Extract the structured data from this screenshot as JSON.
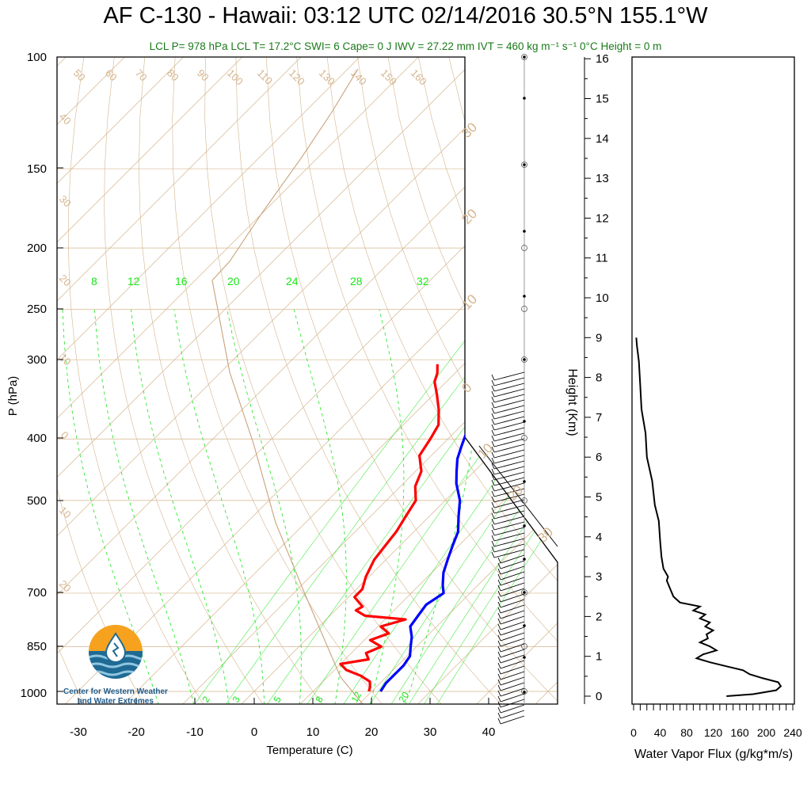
{
  "title": "AF C-130 - Hawaii: 03:12 UTC 02/14/2016  30.5°N 155.1°W",
  "subtitle": "LCL P= 978 hPa  LCL T= 17.2°C  SWI= 6  Cape= 0 J  IWV = 27.22 mm  IVT = 460 kg m⁻¹ s⁻¹  0°C Height = 0 m",
  "logo": {
    "line1": "Center for Western Weather",
    "line2": "and Water Extremes"
  },
  "colors": {
    "temperature": "#ff0000",
    "dewpoint": "#0000ff",
    "isotherm": "#d4b48c",
    "mixing_ratio": "#19e619",
    "flux": "#000000"
  },
  "chart_data": [
    {
      "type": "line",
      "subtype": "skew-t",
      "title": "",
      "xlabel": "Temperature (C)",
      "ylabel": "P (hPa)",
      "pressure_ticks": [
        100,
        150,
        200,
        250,
        300,
        400,
        500,
        700,
        850,
        1000
      ],
      "temperature_ticks": [
        -30,
        -20,
        -10,
        0,
        10,
        20,
        30,
        40
      ],
      "xlim": [
        -34,
        52
      ],
      "ylim": [
        1050,
        100
      ],
      "isotherm_labels": [
        "50",
        "60",
        "70",
        "80",
        "90",
        "100",
        "110",
        "120",
        "130",
        "140",
        "150",
        "160",
        "40",
        "30",
        "20",
        "10",
        "0",
        "10",
        "20",
        "30",
        "20",
        "10",
        "0",
        "10",
        "20",
        "30"
      ],
      "mixing_ratio_labels_top": [
        "8",
        "12",
        "16",
        "20",
        "24",
        "28",
        "32"
      ],
      "mixing_ratio_labels_bottom": [
        "2",
        "3",
        "5",
        "8",
        "12",
        "20"
      ],
      "series": [
        {
          "key": "temperature",
          "values": [
            {
              "p": 1000,
              "t": 19.5
            },
            {
              "p": 985,
              "t": 19.0
            },
            {
              "p": 965,
              "t": 18.0
            },
            {
              "p": 945,
              "t": 15.5
            },
            {
              "p": 925,
              "t": 12.0
            },
            {
              "p": 905,
              "t": 10.0
            },
            {
              "p": 890,
              "t": 14.0
            },
            {
              "p": 870,
              "t": 12.5
            },
            {
              "p": 850,
              "t": 14.0
            },
            {
              "p": 830,
              "t": 11.0
            },
            {
              "p": 810,
              "t": 13.0
            },
            {
              "p": 790,
              "t": 10.5
            },
            {
              "p": 770,
              "t": 13.5
            },
            {
              "p": 760,
              "t": 6.0
            },
            {
              "p": 745,
              "t": 3.5
            },
            {
              "p": 735,
              "t": 4.0
            },
            {
              "p": 710,
              "t": 1.0
            },
            {
              "p": 690,
              "t": 1.0
            },
            {
              "p": 660,
              "t": -0.5
            },
            {
              "p": 620,
              "t": -2.0
            },
            {
              "p": 590,
              "t": -2.5
            },
            {
              "p": 560,
              "t": -3.0
            },
            {
              "p": 530,
              "t": -4.0
            },
            {
              "p": 500,
              "t": -5.0
            },
            {
              "p": 475,
              "t": -7.5
            },
            {
              "p": 450,
              "t": -9.0
            },
            {
              "p": 425,
              "t": -12.0
            },
            {
              "p": 400,
              "t": -13.0
            },
            {
              "p": 380,
              "t": -14.0
            },
            {
              "p": 360,
              "t": -16.5
            },
            {
              "p": 340,
              "t": -19.5
            },
            {
              "p": 325,
              "t": -22.0
            },
            {
              "p": 315,
              "t": -23.0
            },
            {
              "p": 305,
              "t": -24.5
            }
          ]
        },
        {
          "key": "dewpoint",
          "values": [
            {
              "p": 1000,
              "t": 21.5
            },
            {
              "p": 970,
              "t": 21.0
            },
            {
              "p": 940,
              "t": 21.0
            },
            {
              "p": 910,
              "t": 21.0
            },
            {
              "p": 880,
              "t": 20.5
            },
            {
              "p": 850,
              "t": 19.0
            },
            {
              "p": 820,
              "t": 17.5
            },
            {
              "p": 790,
              "t": 15.5
            },
            {
              "p": 760,
              "t": 15.0
            },
            {
              "p": 730,
              "t": 14.5
            },
            {
              "p": 700,
              "t": 15.5
            },
            {
              "p": 680,
              "t": 14.0
            },
            {
              "p": 650,
              "t": 12.0
            },
            {
              "p": 620,
              "t": 10.5
            },
            {
              "p": 590,
              "t": 9.0
            },
            {
              "p": 560,
              "t": 7.5
            },
            {
              "p": 530,
              "t": 5.0
            },
            {
              "p": 500,
              "t": 2.5
            },
            {
              "p": 470,
              "t": -1.0
            },
            {
              "p": 450,
              "t": -3.0
            },
            {
              "p": 430,
              "t": -5.0
            },
            {
              "p": 410,
              "t": -6.5
            },
            {
              "p": 390,
              "t": -8.0
            },
            {
              "p": 370,
              "t": -9.5
            },
            {
              "p": 350,
              "t": -11.0
            },
            {
              "p": 330,
              "t": -12.0
            },
            {
              "p": 315,
              "t": -13.5
            },
            {
              "p": 305,
              "t": -15.0
            }
          ]
        }
      ]
    },
    {
      "type": "line",
      "title": "",
      "xlabel": "Water Vapor Flux (g/kg*m/s)",
      "ylabel": "Height (Km)",
      "xlim": [
        0,
        240
      ],
      "ylim": [
        -0.2,
        16.5
      ],
      "x_ticks": [
        0,
        40,
        80,
        120,
        160,
        200,
        240
      ],
      "y_ticks": [
        0,
        1,
        2,
        3,
        4,
        5,
        6,
        7,
        8,
        9,
        10,
        11,
        12,
        13,
        14,
        15,
        16
      ],
      "series": [
        {
          "key": "flux",
          "values": [
            {
              "h": 0.0,
              "x": 140
            },
            {
              "h": 0.05,
              "x": 180
            },
            {
              "h": 0.15,
              "x": 215
            },
            {
              "h": 0.25,
              "x": 222
            },
            {
              "h": 0.35,
              "x": 218
            },
            {
              "h": 0.45,
              "x": 195
            },
            {
              "h": 0.55,
              "x": 175
            },
            {
              "h": 0.65,
              "x": 165
            },
            {
              "h": 0.75,
              "x": 140
            },
            {
              "h": 0.85,
              "x": 115
            },
            {
              "h": 0.95,
              "x": 95
            },
            {
              "h": 1.05,
              "x": 105
            },
            {
              "h": 1.15,
              "x": 125
            },
            {
              "h": 1.25,
              "x": 115
            },
            {
              "h": 1.35,
              "x": 100
            },
            {
              "h": 1.45,
              "x": 112
            },
            {
              "h": 1.55,
              "x": 110
            },
            {
              "h": 1.65,
              "x": 120
            },
            {
              "h": 1.75,
              "x": 108
            },
            {
              "h": 1.85,
              "x": 115
            },
            {
              "h": 1.95,
              "x": 100
            },
            {
              "h": 2.05,
              "x": 108
            },
            {
              "h": 2.15,
              "x": 90
            },
            {
              "h": 2.25,
              "x": 100
            },
            {
              "h": 2.35,
              "x": 70
            },
            {
              "h": 2.5,
              "x": 60
            },
            {
              "h": 2.7,
              "x": 55
            },
            {
              "h": 2.9,
              "x": 50
            },
            {
              "h": 3.0,
              "x": 52
            },
            {
              "h": 3.2,
              "x": 45
            },
            {
              "h": 3.5,
              "x": 42
            },
            {
              "h": 3.9,
              "x": 40
            },
            {
              "h": 4.4,
              "x": 38
            },
            {
              "h": 4.8,
              "x": 32
            },
            {
              "h": 5.4,
              "x": 28
            },
            {
              "h": 6.0,
              "x": 20
            },
            {
              "h": 6.6,
              "x": 18
            },
            {
              "h": 7.2,
              "x": 12
            },
            {
              "h": 7.8,
              "x": 10
            },
            {
              "h": 8.4,
              "x": 8
            },
            {
              "h": 8.8,
              "x": 5
            },
            {
              "h": 9.0,
              "x": 4
            }
          ]
        }
      ]
    }
  ]
}
